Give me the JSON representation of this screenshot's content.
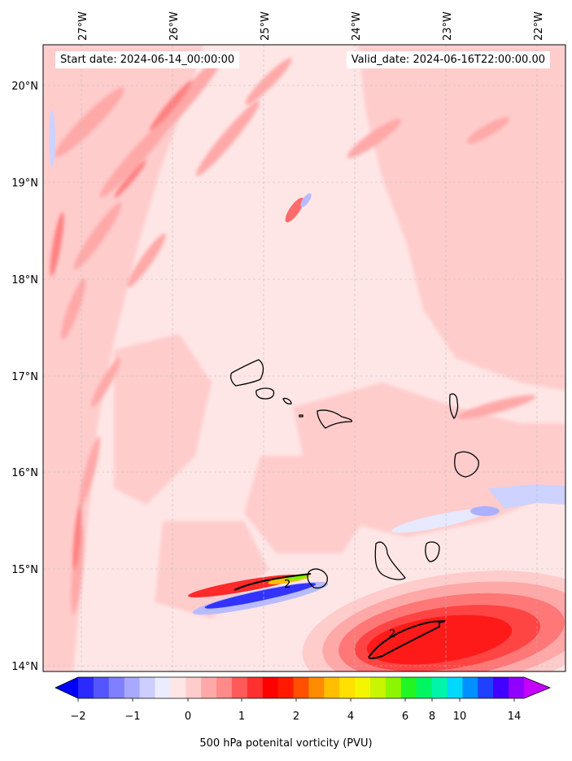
{
  "header": {
    "start_date": "Start date: 2024-06-14_00:00:00",
    "valid_date": "Valid_date: 2024-06-16T22:00:00.00"
  },
  "map": {
    "lon_labels": [
      "27°W",
      "26°W",
      "25°W",
      "24°W",
      "23°W",
      "22°W"
    ],
    "lat_labels": [
      "20°N",
      "19°N",
      "18°N",
      "17°N",
      "16°N",
      "15°N",
      "14°N"
    ],
    "contour_label": "2",
    "contour_label_small": "2",
    "colors": {
      "background_field": "#ffe6e6",
      "light_pink": "#ffcccc",
      "mid_pink": "#ffa8a8",
      "strong_pink": "#ff8080",
      "red": "#ff1a1a",
      "light_blue": "#cdd2ff",
      "blue": "#3333ff",
      "coastline": "#000000"
    }
  },
  "colorbar": {
    "label": "500 hPa potenital vorticity (PVU)",
    "tick_labels": [
      "−2",
      "−1",
      "0",
      "1",
      "2",
      "4",
      "6",
      "8",
      "10",
      "14"
    ],
    "colors": [
      "#0000ff",
      "#2a2aff",
      "#5555ff",
      "#7f7fff",
      "#a8a8ff",
      "#cdcdff",
      "#ececff",
      "#ffe6e6",
      "#ffcccc",
      "#ffa8a8",
      "#ff8a8a",
      "#ff5a5a",
      "#ff3030",
      "#ff0000",
      "#ff1a00",
      "#ff5000",
      "#ff8c00",
      "#ffbf00",
      "#ffe000",
      "#f5f500",
      "#c8f500",
      "#8cf500",
      "#22f522",
      "#00f560",
      "#00f5a8",
      "#00d8ff",
      "#0090ff",
      "#2040ff",
      "#4000ff",
      "#9000ff",
      "#c400ff"
    ]
  }
}
